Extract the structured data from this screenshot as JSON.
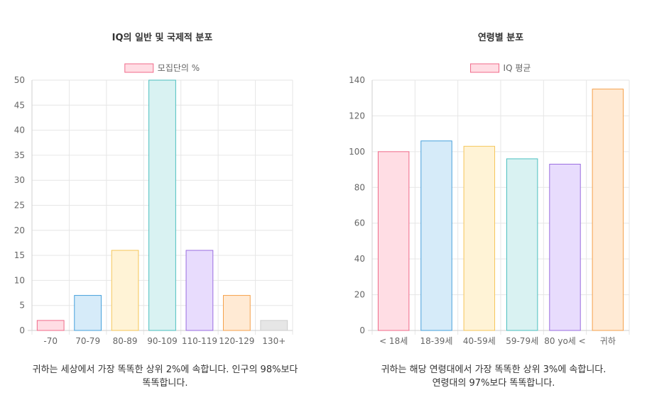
{
  "chart_data": [
    {
      "type": "bar",
      "title": "IQ의 일반 및 국제적 분포",
      "legend": {
        "label": "모집단의 %",
        "position": "top",
        "fill": "#ffdde4",
        "stroke": "#f06a8a"
      },
      "categories": [
        "-70",
        "70-79",
        "80-89",
        "90-109",
        "110-119",
        "120-129",
        "130+"
      ],
      "values": [
        2,
        7,
        16,
        50,
        16,
        7,
        2
      ],
      "ylim": [
        0,
        50
      ],
      "yticks": [
        0,
        5,
        10,
        15,
        20,
        25,
        30,
        35,
        40,
        45,
        50
      ],
      "xlabel": "",
      "ylabel": "",
      "grid": true,
      "colors": [
        {
          "fill": "#ffdde4",
          "stroke": "#f06a8a"
        },
        {
          "fill": "#d6ebf9",
          "stroke": "#46a0dc"
        },
        {
          "fill": "#fff3d6",
          "stroke": "#f5c659"
        },
        {
          "fill": "#d9f2f2",
          "stroke": "#4bbfbf"
        },
        {
          "fill": "#e8dcfd",
          "stroke": "#9a6de0"
        },
        {
          "fill": "#ffead4",
          "stroke": "#f5a14b"
        },
        {
          "fill": "#e6e6e6",
          "stroke": "#cccccc"
        }
      ]
    },
    {
      "type": "bar",
      "title": "연령별 분포",
      "legend": {
        "label": "IQ 평균",
        "position": "top",
        "fill": "#ffdde4",
        "stroke": "#f06a8a"
      },
      "categories": [
        "< 18세",
        "18-39세",
        "40-59세",
        "59-79세",
        "80 yo세 <",
        "귀하"
      ],
      "values": [
        100,
        106,
        103,
        96,
        93,
        135
      ],
      "ylim": [
        0,
        140
      ],
      "yticks": [
        0,
        20,
        40,
        60,
        80,
        100,
        120,
        140
      ],
      "xlabel": "",
      "ylabel": "",
      "grid": true,
      "colors": [
        {
          "fill": "#ffdde4",
          "stroke": "#f06a8a"
        },
        {
          "fill": "#d6ebf9",
          "stroke": "#46a0dc"
        },
        {
          "fill": "#fff3d6",
          "stroke": "#f5c659"
        },
        {
          "fill": "#d9f2f2",
          "stroke": "#4bbfbf"
        },
        {
          "fill": "#e8dcfd",
          "stroke": "#9a6de0"
        },
        {
          "fill": "#ffead4",
          "stroke": "#f5a14b"
        }
      ]
    }
  ],
  "captions": {
    "left": "귀하는 세상에서 가장 똑똑한 상위 2%에 속합니다. 인구의 98%보다 똑똑합니다.",
    "right_line1": "귀하는 해당 연령대에서 가장 똑똑한 상위 3%에 속합니다.",
    "right_line2": "연령대의 97%보다 똑똑합니다."
  }
}
